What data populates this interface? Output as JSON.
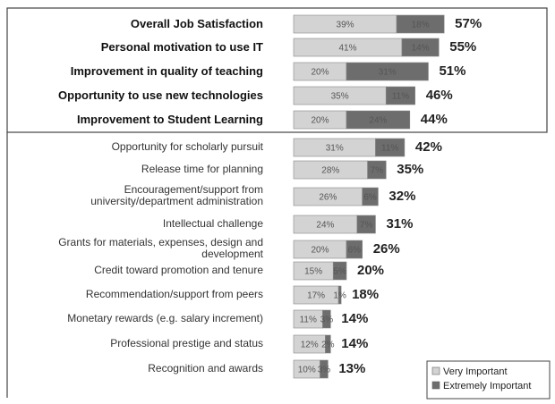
{
  "chart_data": {
    "type": "stacked-barh",
    "categories": [
      "Overall Job Satisfaction",
      "Personal motivation to use IT",
      "Improvement in quality of teaching",
      "Opportunity to use new technologies",
      "Improvement  to Student Learning",
      "Opportunity for scholarly pursuit",
      "Release time for planning",
      "Encouragement/support from\nuniversity/department administration",
      "Intellectual challenge",
      "Grants for materials, expenses, design and\ndevelopment",
      "Credit toward promotion and tenure",
      "Recommendation/support from peers",
      "Monetary rewards (e.g. salary increment)",
      "Professional prestige and status",
      "Recognition and awards"
    ],
    "series": [
      {
        "name": "Very Important",
        "color": "#d3d3d3",
        "values": [
          39,
          41,
          20,
          35,
          20,
          31,
          28,
          26,
          24,
          20,
          15,
          17,
          11,
          12,
          10
        ],
        "value_labels": [
          "39%",
          "41%",
          "20%",
          "35%",
          "20%",
          "31%",
          "28%",
          "26%",
          "24%",
          "20%",
          "15%",
          "17%",
          "11%",
          "12%",
          "10%"
        ]
      },
      {
        "name": "Extremely Important",
        "color": "#6d6d6d",
        "values": [
          18,
          14,
          31,
          11,
          24,
          11,
          7,
          6,
          7,
          6,
          5,
          1,
          3,
          2,
          3
        ],
        "value_labels": [
          "18%",
          "14%",
          "31%",
          "11%",
          "24%",
          "11%",
          "7%",
          "6%",
          "7%",
          "6%",
          "5%",
          "1%",
          "3%",
          "2%",
          "3%"
        ]
      }
    ],
    "total_labels": [
      "57%",
      "55%",
      "51%",
      "46%",
      "44%",
      "42%",
      "35%",
      "32%",
      "31%",
      "26%",
      "20%",
      "18%",
      "14%",
      "14%",
      "13%"
    ],
    "xlim": [
      0,
      100
    ],
    "legend": "lower right"
  }
}
